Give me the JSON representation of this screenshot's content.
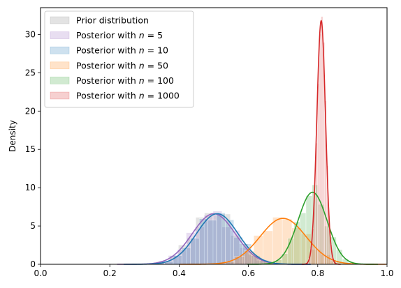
{
  "chart_data": {
    "type": "area",
    "title": "",
    "xlabel": "",
    "ylabel": "Density",
    "xlim": [
      0.0,
      1.0
    ],
    "ylim": [
      0,
      33.5
    ],
    "xticks": [
      "0.0",
      "0.2",
      "0.4",
      "0.6",
      "0.8",
      "1.0"
    ],
    "yticks": [
      "0",
      "5",
      "10",
      "15",
      "20",
      "25",
      "30"
    ],
    "grid": false,
    "legend_position": "top-left",
    "series": [
      {
        "name": "Prior distribution",
        "legend_prefix": "Prior distribution",
        "legend_n": "",
        "color": "#7f7f7f",
        "kde": false,
        "mean": 0.5,
        "sd": 0.06,
        "peak": 7.0
      },
      {
        "name": "Posterior with n = 5",
        "legend_prefix": "Posterior with ",
        "legend_n": "5",
        "color": "#9467bd",
        "kde": true,
        "mean": 0.5,
        "sd": 0.062,
        "peak": 6.6
      },
      {
        "name": "Posterior with n = 10",
        "legend_prefix": "Posterior with ",
        "legend_n": "10",
        "color": "#1f77b4",
        "kde": true,
        "mean": 0.51,
        "sd": 0.06,
        "peak": 6.6
      },
      {
        "name": "Posterior with n = 50",
        "legend_prefix": "Posterior with ",
        "legend_n": "50",
        "color": "#ff7f0e",
        "kde": true,
        "mean": 0.7,
        "sd": 0.066,
        "peak": 6.0
      },
      {
        "name": "Posterior with n = 100",
        "legend_prefix": "Posterior with ",
        "legend_n": "100",
        "color": "#2ca02c",
        "kde": true,
        "mean": 0.785,
        "sd": 0.042,
        "peak": 9.4
      },
      {
        "name": "Posterior with n = 1000",
        "legend_prefix": "Posterior with ",
        "legend_n": "1000",
        "color": "#d62728",
        "kde": true,
        "mean": 0.81,
        "sd": 0.0125,
        "peak": 31.8
      }
    ]
  }
}
